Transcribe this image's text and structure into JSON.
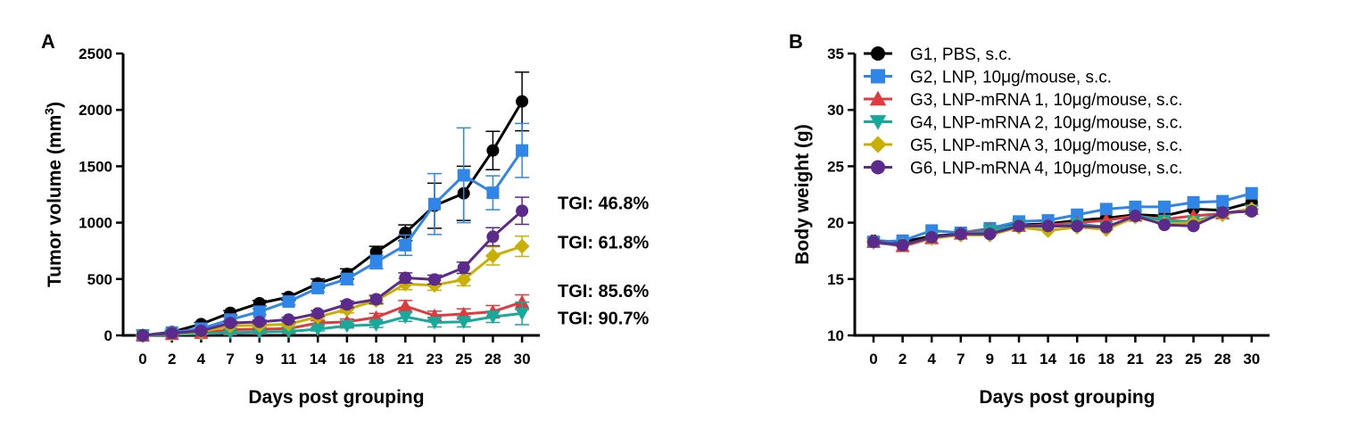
{
  "colors": {
    "G1": "#000000",
    "G2": "#2f86e8",
    "G3": "#e0393e",
    "G4": "#17a99a",
    "G5": "#c9b000",
    "G6": "#5b2a8c"
  },
  "legend": [
    {
      "key": "G1",
      "label": "G1, PBS, s.c.",
      "marker": "circle"
    },
    {
      "key": "G2",
      "label": "G2, LNP, 10μg/mouse, s.c.",
      "marker": "square"
    },
    {
      "key": "G3",
      "label": "G3, LNP-mRNA 1, 10μg/mouse, s.c.",
      "marker": "triangle-up"
    },
    {
      "key": "G4",
      "label": "G4, LNP-mRNA 2, 10μg/mouse, s.c.",
      "marker": "triangle-down"
    },
    {
      "key": "G5",
      "label": "G5, LNP-mRNA 3, 10μg/mouse, s.c.",
      "marker": "diamond"
    },
    {
      "key": "G6",
      "label": "G6, LNP-mRNA 4, 10μg/mouse, s.c.",
      "marker": "circle"
    }
  ],
  "chart_data": [
    {
      "panel": "A",
      "type": "line",
      "xlabel": "Days post grouping",
      "ylabel": "Tumor volume (mm",
      "ylabel_sup": "3",
      "ylabel_close": ")",
      "categories": [
        "0",
        "2",
        "4",
        "7",
        "9",
        "11",
        "14",
        "16",
        "18",
        "21",
        "23",
        "25",
        "28",
        "30"
      ],
      "ylim": [
        0,
        2500
      ],
      "yticks": [
        0,
        500,
        1000,
        1500,
        2000,
        2500
      ],
      "series": [
        {
          "key": "G1",
          "name": "G1, PBS, s.c.",
          "marker": "circle",
          "values": [
            0,
            30,
            100,
            200,
            285,
            340,
            460,
            545,
            740,
            910,
            1150,
            1260,
            1640,
            2075
          ],
          "errors": [
            0,
            10,
            15,
            20,
            25,
            30,
            40,
            45,
            50,
            70,
            200,
            240,
            170,
            260
          ]
        },
        {
          "key": "G2",
          "name": "G2, LNP, 10μg/mouse, s.c.",
          "marker": "square",
          "values": [
            0,
            25,
            60,
            140,
            210,
            300,
            420,
            500,
            650,
            800,
            1165,
            1420,
            1265,
            1640
          ],
          "errors": [
            0,
            8,
            15,
            20,
            25,
            30,
            35,
            50,
            60,
            90,
            270,
            420,
            150,
            240
          ]
        },
        {
          "key": "G3",
          "name": "G3, LNP-mRNA 1, 10μg/mouse, s.c.",
          "marker": "triangle-up",
          "values": [
            0,
            10,
            20,
            50,
            55,
            60,
            110,
            120,
            160,
            260,
            175,
            190,
            210,
            295
          ],
          "errors": [
            0,
            5,
            8,
            10,
            15,
            15,
            20,
            25,
            35,
            50,
            40,
            45,
            55,
            65
          ]
        },
        {
          "key": "G4",
          "name": "G4, LNP-mRNA 2, 10μg/mouse, s.c.",
          "marker": "triangle-down",
          "values": [
            0,
            8,
            15,
            25,
            30,
            35,
            55,
            85,
            95,
            165,
            115,
            120,
            165,
            195
          ],
          "errors": [
            0,
            5,
            8,
            10,
            10,
            12,
            15,
            20,
            25,
            40,
            40,
            45,
            50,
            100
          ]
        },
        {
          "key": "G5",
          "name": "G5, LNP-mRNA 3, 10μg/mouse, s.c.",
          "marker": "diamond",
          "values": [
            0,
            15,
            30,
            85,
            90,
            100,
            165,
            230,
            310,
            455,
            445,
            495,
            705,
            790
          ],
          "errors": [
            0,
            5,
            10,
            15,
            15,
            20,
            25,
            30,
            35,
            50,
            45,
            55,
            80,
            90
          ]
        },
        {
          "key": "G6",
          "name": "G6, LNP-mRNA 4, 10μg/mouse, s.c.",
          "marker": "circle",
          "values": [
            0,
            20,
            40,
            110,
            120,
            140,
            195,
            275,
            320,
            510,
            495,
            600,
            875,
            1105
          ],
          "errors": [
            0,
            5,
            10,
            15,
            15,
            20,
            25,
            30,
            35,
            45,
            40,
            50,
            80,
            120
          ]
        }
      ],
      "annotations": [
        {
          "text": "TGI: 46.8%",
          "y": 1175
        },
        {
          "text": "TGI: 61.8%",
          "y": 825
        },
        {
          "text": "TGI: 85.6%",
          "y": 395
        },
        {
          "text": "TGI: 90.7%",
          "y": 155
        }
      ]
    },
    {
      "panel": "B",
      "type": "line",
      "xlabel": "Days post grouping",
      "ylabel": "Body weight (g)",
      "categories": [
        "0",
        "2",
        "4",
        "7",
        "9",
        "11",
        "14",
        "16",
        "18",
        "21",
        "23",
        "25",
        "28",
        "30"
      ],
      "ylim": [
        10,
        35
      ],
      "yticks": [
        10,
        15,
        20,
        25,
        30,
        35
      ],
      "series": [
        {
          "key": "G1",
          "name": "G1, PBS, s.c.",
          "marker": "circle",
          "values": [
            18.4,
            18.3,
            18.8,
            19.0,
            19.5,
            19.8,
            19.9,
            20.2,
            20.4,
            20.7,
            20.6,
            21.2,
            21.1,
            21.8
          ]
        },
        {
          "key": "G2",
          "name": "G2, LNP, 10μg/mouse, s.c.",
          "marker": "square",
          "values": [
            18.3,
            18.4,
            19.3,
            19.1,
            19.5,
            20.1,
            20.2,
            20.7,
            21.2,
            21.4,
            21.4,
            21.8,
            21.9,
            22.6
          ]
        },
        {
          "key": "G3",
          "name": "G3, LNP-mRNA 1, 10μg/mouse, s.c.",
          "marker": "triangle-up",
          "values": [
            18.3,
            17.9,
            18.6,
            19.0,
            19.4,
            19.7,
            19.8,
            20.0,
            20.2,
            20.6,
            20.3,
            20.6,
            20.8,
            21.2
          ]
        },
        {
          "key": "G4",
          "name": "G4, LNP-mRNA 2, 10μg/mouse, s.c.",
          "marker": "triangle-down",
          "values": [
            18.2,
            18.0,
            18.7,
            18.9,
            19.3,
            19.8,
            19.6,
            19.9,
            19.6,
            20.6,
            20.2,
            20.1,
            20.8,
            21.1
          ]
        },
        {
          "key": "G5",
          "name": "G5, LNP-mRNA 3, 10μg/mouse, s.c.",
          "marker": "diamond",
          "values": [
            18.3,
            18.0,
            18.6,
            18.9,
            18.9,
            19.6,
            19.3,
            19.6,
            19.4,
            20.5,
            19.9,
            20.0,
            20.7,
            21.2
          ]
        },
        {
          "key": "G6",
          "name": "G6, LNP-mRNA 4, 10μg/mouse, s.c.",
          "marker": "circle",
          "values": [
            18.3,
            18.0,
            18.7,
            19.0,
            19.0,
            19.7,
            19.7,
            19.7,
            19.6,
            20.6,
            19.8,
            19.7,
            20.9,
            21.0
          ]
        }
      ]
    }
  ]
}
